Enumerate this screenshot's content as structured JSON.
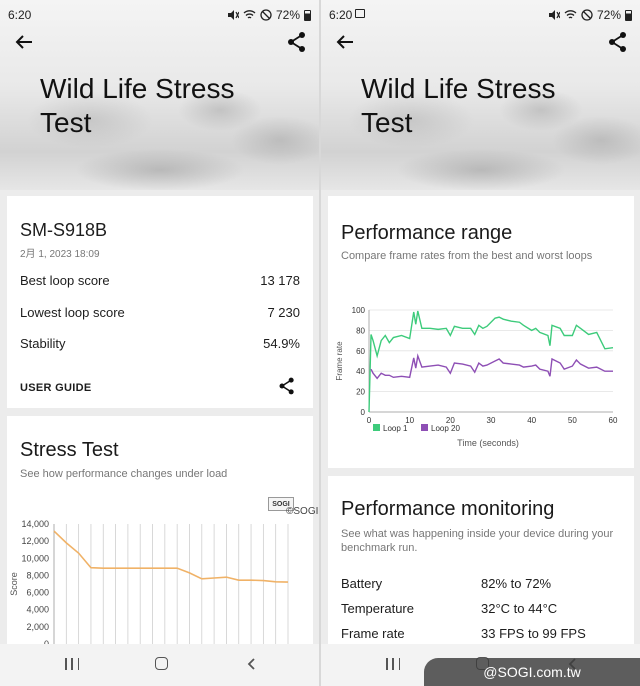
{
  "left": {
    "status": {
      "time": "6:20",
      "battery": "72%"
    },
    "hero_title": "Wild Life Stress Test",
    "device_card": {
      "device": "SM-S918B",
      "date": "2月 1, 2023 18:09",
      "rows": [
        {
          "label": "Best loop score",
          "value": "13 178"
        },
        {
          "label": "Lowest loop score",
          "value": "7 230"
        },
        {
          "label": "Stability",
          "value": "54.9%"
        }
      ],
      "user_guide": "USER GUIDE"
    },
    "stress_card": {
      "title": "Stress Test",
      "subtitle": "See how performance changes under load"
    }
  },
  "right": {
    "status": {
      "time": "6:20",
      "battery": "72%"
    },
    "hero_title": "Wild Life Stress Test",
    "range_card": {
      "title": "Performance range",
      "subtitle": "Compare frame rates from the best and worst loops"
    },
    "monitoring_card": {
      "title": "Performance monitoring",
      "subtitle": "See what was happening inside your device during your benchmark run.",
      "rows": [
        {
          "label": "Battery",
          "value": "82% to 72%"
        },
        {
          "label": "Temperature",
          "value": "32°C to 44°C"
        },
        {
          "label": "Frame rate",
          "value": "33 FPS to 99 FPS"
        }
      ]
    }
  },
  "watermark": "©SOGI.com.tw",
  "watermark_badge": "@SOGI.com.tw",
  "sogi_logo": "SOGI",
  "colors": {
    "loop1": "#3dcb7b",
    "loop20": "#8e4fb5",
    "score_line": "#f0b267",
    "grid": "#cfcfcf"
  },
  "chart_data": [
    {
      "type": "line",
      "title": "",
      "xlabel": "",
      "ylabel": "Score",
      "ylim": [
        0,
        14000
      ],
      "yticks": [
        "14,000",
        "12,000",
        "10,000",
        "8,000",
        "6,000",
        "4,000",
        "2,000",
        "0"
      ],
      "x": [
        1,
        2,
        3,
        4,
        5,
        6,
        7,
        8,
        9,
        10,
        11,
        12,
        13,
        14,
        15,
        16,
        17,
        18,
        19,
        20
      ],
      "series": [
        {
          "values": [
            13178,
            11800,
            10600,
            8900,
            8850,
            8850,
            8850,
            8850,
            8850,
            8850,
            8850,
            8300,
            7600,
            7700,
            7800,
            7450,
            7450,
            7400,
            7250,
            7230
          ]
        }
      ]
    },
    {
      "type": "line",
      "title": "",
      "xlabel": "Time (seconds)",
      "ylabel": "Frame rate",
      "xlim": [
        0,
        60
      ],
      "ylim": [
        0,
        100
      ],
      "xticks": [
        "0",
        "10",
        "20",
        "30",
        "40",
        "50",
        "60"
      ],
      "yticks": [
        "100",
        "80",
        "60",
        "40",
        "20",
        "0"
      ],
      "legend": "bottom-left",
      "series": [
        {
          "name": "Loop 1",
          "x": [
            0,
            0.5,
            1,
            2,
            3,
            4,
            5,
            6,
            8,
            10,
            11,
            11.5,
            12,
            13,
            15,
            17,
            19,
            20,
            21,
            23,
            25,
            26,
            27,
            28,
            29,
            31,
            32,
            33,
            35,
            37,
            38,
            40,
            41,
            42,
            44,
            44.5,
            45,
            47,
            48,
            50,
            51,
            52,
            54,
            56,
            58,
            60
          ],
          "values": [
            0,
            76,
            70,
            55,
            70,
            75,
            68,
            73,
            75,
            72,
            98,
            86,
            99,
            82,
            82,
            81,
            82,
            75,
            84,
            82,
            82,
            76,
            85,
            82,
            84,
            92,
            93,
            91,
            89,
            88,
            85,
            80,
            82,
            78,
            75,
            65,
            85,
            82,
            75,
            75,
            85,
            82,
            76,
            78,
            62,
            63
          ]
        },
        {
          "name": "Loop 20",
          "x": [
            0.5,
            1,
            2,
            3,
            4,
            5,
            6,
            8,
            10,
            11,
            11.5,
            12,
            13,
            15,
            17,
            19,
            20,
            21,
            23,
            25,
            26,
            27,
            28,
            29,
            31,
            32,
            33,
            35,
            37,
            38,
            40,
            41,
            42,
            44,
            44.5,
            45,
            47,
            48,
            50,
            51,
            52,
            54,
            56,
            58,
            60
          ],
          "values": [
            42,
            38,
            33,
            38,
            36,
            36,
            34,
            35,
            34,
            53,
            43,
            55,
            44,
            45,
            46,
            44,
            38,
            48,
            47,
            45,
            39,
            48,
            45,
            46,
            50,
            52,
            48,
            47,
            46,
            44,
            45,
            46,
            42,
            40,
            35,
            52,
            48,
            42,
            45,
            51,
            47,
            43,
            44,
            40,
            40
          ]
        }
      ]
    }
  ]
}
